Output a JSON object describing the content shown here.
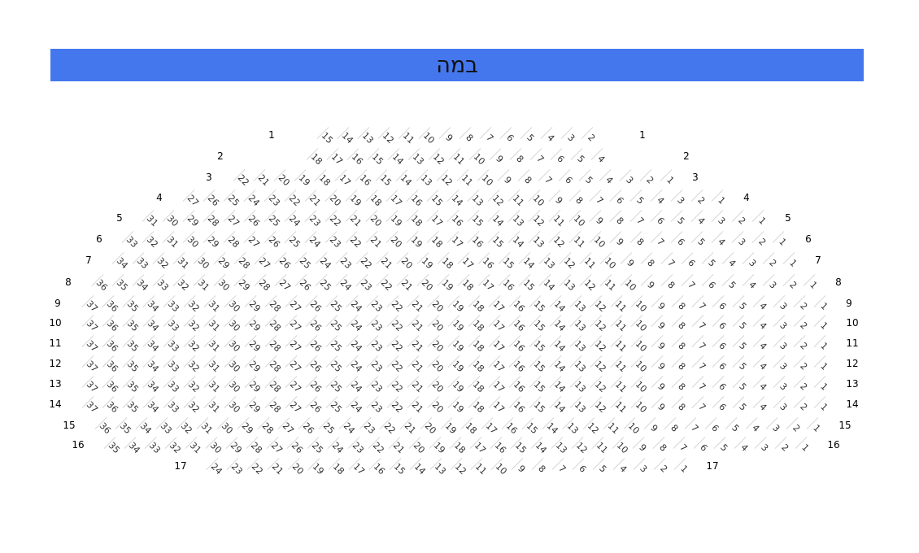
{
  "stage": {
    "label": "במה",
    "color": "#4477ee"
  },
  "rows": [
    {
      "label": "1",
      "seats_from": 15,
      "seats_to": 2
    },
    {
      "label": "2",
      "seats_from": 18,
      "seats_to": 4
    },
    {
      "label": "3",
      "seats_from": 22,
      "seats_to": 1
    },
    {
      "label": "4",
      "seats_from": 27,
      "seats_to": 1
    },
    {
      "label": "5",
      "seats_from": 31,
      "seats_to": 1
    },
    {
      "label": "6",
      "seats_from": 33,
      "seats_to": 1
    },
    {
      "label": "7",
      "seats_from": 34,
      "seats_to": 1
    },
    {
      "label": "8",
      "seats_from": 36,
      "seats_to": 1
    },
    {
      "label": "9",
      "seats_from": 37,
      "seats_to": 1
    },
    {
      "label": "10",
      "seats_from": 37,
      "seats_to": 1
    },
    {
      "label": "11",
      "seats_from": 37,
      "seats_to": 1
    },
    {
      "label": "12",
      "seats_from": 37,
      "seats_to": 1
    },
    {
      "label": "13",
      "seats_from": 37,
      "seats_to": 1
    },
    {
      "label": "14",
      "seats_from": 37,
      "seats_to": 1
    },
    {
      "label": "15",
      "seats_from": 36,
      "seats_to": 1
    },
    {
      "label": "16",
      "seats_from": 35,
      "seats_to": 1
    },
    {
      "label": "17",
      "seats_from": 24,
      "seats_to": 1
    }
  ]
}
